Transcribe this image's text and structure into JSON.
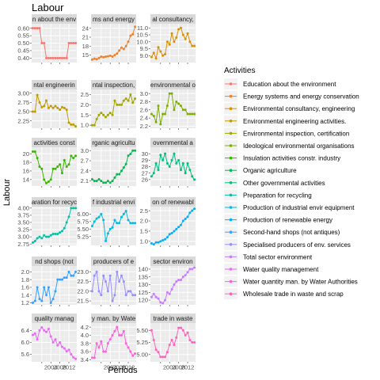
{
  "chart_data": {
    "type": "line",
    "title": "Labour",
    "xlabel": "Periods",
    "ylabel": "Labour",
    "x": [
      1996,
      1997,
      1998,
      1999,
      2000,
      2001,
      2002,
      2003,
      2004,
      2005,
      2006,
      2007,
      2008,
      2009,
      2010,
      2011,
      2012,
      2013,
      2014,
      2015
    ],
    "xlim": [
      1995.5,
      2015.5
    ],
    "x_ticks": [
      2000,
      2004,
      2008,
      2012
    ],
    "x_tick_labels": [
      "2000",
      "2004",
      "2008",
      "2012"
    ],
    "legend_title": "Activities",
    "legend_position": "right",
    "grid": true,
    "facets": [
      {
        "strip": "n about the env",
        "name": "Education about the environment",
        "color": "#F8766D",
        "ylim": [
          0.37,
          0.63
        ],
        "yticks": [
          0.4,
          0.45,
          0.5,
          0.55,
          0.6
        ],
        "ytick_labels": [
          "0.40",
          "0.45",
          "0.50",
          "0.55",
          "0.60"
        ],
        "values": [
          0.6,
          0.6,
          0.6,
          0.6,
          0.5,
          0.5,
          0.4,
          0.4,
          0.4,
          0.4,
          0.4,
          0.4,
          0.4,
          0.4,
          0.4,
          0.4,
          0.5,
          0.5,
          0.5,
          0.5
        ]
      },
      {
        "strip": "ms and energy",
        "name": "Energy systems and energy conservation",
        "color": "#EA8331",
        "ylim": [
          12.5,
          25.5
        ],
        "yticks": [
          15,
          18,
          21,
          24
        ],
        "ytick_labels": [
          "15",
          "18",
          "21",
          "24"
        ],
        "values": [
          13.5,
          13.8,
          13.6,
          14.0,
          14.5,
          14.3,
          14.5,
          14.6,
          14.8,
          14.5,
          15.0,
          15.5,
          16.5,
          17.5,
          17.0,
          18.0,
          19.5,
          21.5,
          22.0,
          24.5
        ]
      },
      {
        "strip": "al consultancy, ",
        "name": "Environmental consultancy, engineering",
        "color": "#D89000",
        "ylim": [
          8.5,
          11.3
        ],
        "yticks": [
          9.0,
          9.5,
          10.0,
          10.5,
          11.0
        ],
        "ytick_labels": [
          "9.0",
          "9.5",
          "10.0",
          "10.5",
          "11.0"
        ],
        "values": [
          8.9,
          9.2,
          8.8,
          9.6,
          9.3,
          9.0,
          9.1,
          10.0,
          9.8,
          10.6,
          10.0,
          10.3,
          10.9,
          11.0,
          10.5,
          10.2,
          10.6,
          10.0,
          9.7,
          9.7
        ]
      },
      {
        "strip": "ntal engineerin",
        "name": "Environmental engineering activities.",
        "color": "#C09B00",
        "ylim": [
          2.05,
          3.1
        ],
        "yticks": [
          2.25,
          2.5,
          2.75,
          3.0
        ],
        "ytick_labels": [
          "2.25",
          "2.50",
          "2.75",
          "3.00"
        ],
        "values": [
          2.5,
          2.5,
          2.95,
          2.75,
          2.62,
          2.65,
          2.8,
          2.6,
          2.65,
          2.6,
          2.65,
          2.6,
          2.55,
          2.62,
          2.6,
          2.55,
          2.2,
          2.15,
          2.15,
          2.1
        ]
      },
      {
        "strip": "ntal inspection, ",
        "name": "Environmental inspection, certification",
        "color": "#A3A500",
        "ylim": [
          0.85,
          2.75
        ],
        "yticks": [
          1.0,
          1.5,
          2.0,
          2.5
        ],
        "ytick_labels": [
          "1.0",
          "1.5",
          "2.0",
          "2.5"
        ],
        "values": [
          1.0,
          1.0,
          1.3,
          1.5,
          1.6,
          1.5,
          1.4,
          1.5,
          1.6,
          1.5,
          2.2,
          2.0,
          2.0,
          2.0,
          2.2,
          2.3,
          2.2,
          2.5,
          2.1,
          2.3
        ]
      },
      {
        "strip": "environmental o",
        "name": "Ideological environmental organisations",
        "color": "#7CAE00",
        "ylim": [
          2.15,
          3.1
        ],
        "yticks": [
          2.2,
          2.4,
          2.6,
          2.8,
          3.0
        ],
        "ytick_labels": [
          "2.2",
          "2.4",
          "2.6",
          "2.8",
          "3.0"
        ],
        "values": [
          2.5,
          2.45,
          2.3,
          2.7,
          2.25,
          2.5,
          2.5,
          2.7,
          3.0,
          3.0,
          2.6,
          2.8,
          2.75,
          2.7,
          2.6,
          2.6,
          2.5,
          2.5,
          2.5,
          2.5
        ]
      },
      {
        "strip": "activities const",
        "name": "Insulation activities constr. industry",
        "color": "#39B600",
        "ylim": [
          12.5,
          21.5
        ],
        "yticks": [
          14,
          16,
          18,
          20
        ],
        "ytick_labels": [
          "14",
          "16",
          "18",
          "20"
        ],
        "values": [
          20.5,
          20.5,
          19.0,
          17.0,
          16.5,
          14.0,
          13.2,
          13.5,
          14.0,
          16.5,
          16.5,
          17.0,
          17.5,
          15.5,
          18.5,
          17.0,
          17.5,
          19.5,
          19.0,
          19.5
        ]
      },
      {
        "strip": "rganic agricultu",
        "name": "Organic agriculture",
        "color": "#00BB4E",
        "ylim": [
          1.95,
          3.1
        ],
        "yticks": [
          2.1,
          2.4,
          2.7,
          3.0
        ],
        "ytick_labels": [
          "2.1",
          "2.4",
          "2.7",
          "3.0"
        ],
        "values": [
          2.15,
          2.1,
          2.1,
          2.15,
          2.1,
          2.05,
          2.05,
          2.1,
          2.05,
          2.1,
          2.2,
          2.3,
          2.3,
          2.4,
          2.5,
          2.6,
          2.85,
          2.9,
          3.0,
          3.0
        ]
      },
      {
        "strip": "overnmental a",
        "name": "Other governmental activities",
        "color": "#00BF7D",
        "ylim": [
          25.0,
          31.0
        ],
        "yticks": [
          26,
          27,
          28,
          29,
          30
        ],
        "ytick_labels": [
          "26",
          "27",
          "28",
          "29",
          "30"
        ],
        "values": [
          26.5,
          27.0,
          28.5,
          27.5,
          29.8,
          29.0,
          30.0,
          28.5,
          28.0,
          29.0,
          30.0,
          28.5,
          29.0,
          27.5,
          28.5,
          27.0,
          28.5,
          27.5,
          26.5,
          26.0
        ]
      },
      {
        "strip": "aration for recyc",
        "name": "Preparation for recycling",
        "color": "#00C1A3",
        "ylim": [
          2.7,
          4.05
        ],
        "yticks": [
          2.75,
          3.0,
          3.25,
          3.5,
          3.75,
          4.0
        ],
        "ytick_labels": [
          "2.75",
          "3.00",
          "3.25",
          "3.50",
          "3.75",
          "4.00"
        ],
        "values": [
          2.8,
          2.85,
          2.95,
          3.0,
          2.95,
          3.05,
          3.0,
          3.0,
          3.05,
          3.1,
          3.1,
          3.1,
          3.15,
          3.2,
          3.3,
          3.5,
          3.7,
          4.0,
          4.0,
          4.0
        ]
      },
      {
        "strip": "f industrial envi",
        "name": "Production of industrial envir equipment",
        "color": "#00BAE0",
        "ylim": [
          4.95,
          6.25
        ],
        "yticks": [
          5.25,
          5.5,
          5.75,
          6.0
        ],
        "ytick_labels": [
          "5.25",
          "5.50",
          "5.75",
          "6.00"
        ],
        "values": [
          5.6,
          5.75,
          5.85,
          5.9,
          6.0,
          5.8,
          5.1,
          5.35,
          5.5,
          5.55,
          5.8,
          5.7,
          5.7,
          5.9,
          6.0,
          6.1,
          5.8,
          5.7,
          5.7,
          5.7
        ]
      },
      {
        "strip": "on of renewabl",
        "name": "Production of renewable energy",
        "color": "#00B0F6",
        "ylim": [
          0.8,
          2.7
        ],
        "yticks": [
          1.0,
          1.5,
          2.0,
          2.5
        ],
        "ytick_labels": [
          "1.0",
          "1.5",
          "2.0",
          "2.5"
        ],
        "values": [
          0.9,
          0.85,
          0.95,
          0.95,
          1.0,
          1.05,
          1.1,
          1.2,
          1.35,
          1.4,
          1.5,
          1.6,
          1.7,
          1.8,
          2.0,
          2.1,
          2.2,
          2.4,
          2.5,
          2.6
        ]
      },
      {
        "strip": "nd shops (not",
        "name": "Second-hand shops (not antiques)",
        "color": "#35A2FF",
        "ylim": [
          1.15,
          2.15
        ],
        "yticks": [
          1.2,
          1.4,
          1.6,
          1.8,
          2.0
        ],
        "ytick_labels": [
          "1.2",
          "1.4",
          "1.6",
          "1.8",
          "2.0"
        ],
        "values": [
          1.2,
          1.25,
          1.6,
          1.3,
          1.25,
          1.6,
          1.4,
          1.6,
          1.2,
          1.3,
          1.5,
          1.8,
          1.8,
          1.8,
          1.85,
          1.85,
          2.0,
          1.9,
          1.9,
          2.0
        ]
      },
      {
        "strip": "producers of e",
        "name": "Specialised producers of env. services",
        "color": "#9590FF",
        "ylim": [
          21.3,
          23.3
        ],
        "yticks": [
          21.5,
          22.0,
          22.5,
          23.0
        ],
        "ytick_labels": [
          "21.5",
          "22.0",
          "22.5",
          "23.0"
        ],
        "values": [
          22.0,
          22.8,
          23.0,
          22.0,
          21.8,
          22.8,
          22.5,
          22.0,
          22.8,
          21.5,
          21.8,
          23.0,
          22.5,
          22.8,
          22.5,
          21.8,
          22.0,
          22.0,
          21.8,
          21.8
        ]
      },
      {
        "strip": "sector environ",
        "name": "Total sector environment",
        "color": "#C77CFF",
        "ylim": [
          117.0,
          142.0
        ],
        "yticks": [
          120,
          125,
          130,
          135,
          140
        ],
        "ytick_labels": [
          "120",
          "125",
          "130",
          "135",
          "140"
        ],
        "values": [
          122.0,
          124.0,
          122.0,
          121.0,
          118.5,
          118.0,
          120.0,
          125.0,
          124.0,
          127.0,
          130.0,
          132.0,
          133.0,
          133.0,
          135.0,
          136.0,
          138.0,
          140.0,
          140.0,
          141.0
        ]
      },
      {
        "strip": "quality manag",
        "name": "Water quality management",
        "color": "#E76BF3",
        "ylim": [
          5.35,
          6.65
        ],
        "yticks": [
          5.6,
          6.0,
          6.4
        ],
        "ytick_labels": [
          "5.6",
          "6.0",
          "6.4"
        ],
        "values": [
          6.25,
          6.3,
          6.1,
          6.4,
          6.5,
          6.4,
          6.35,
          6.45,
          6.2,
          6.0,
          6.1,
          5.9,
          6.0,
          5.85,
          5.8,
          5.7,
          5.75,
          5.6,
          5.5,
          5.45
        ]
      },
      {
        "strip": "y man. by Wate",
        "name": "Water quantity man. by Water Authorities",
        "color": "#FA62DB",
        "ylim": [
          3.35,
          4.3
        ],
        "yticks": [
          3.4,
          3.6,
          3.8,
          4.0,
          4.2
        ],
        "ytick_labels": [
          "3.4",
          "3.6",
          "3.8",
          "4.0",
          "4.2"
        ],
        "values": [
          3.45,
          3.45,
          3.8,
          3.7,
          3.85,
          3.6,
          3.6,
          3.8,
          3.9,
          4.0,
          4.1,
          4.2,
          4.0,
          4.0,
          4.1,
          3.8,
          3.7,
          3.6,
          3.5,
          3.55
        ]
      },
      {
        "strip": "trade in waste",
        "name": "Wholesale trade in waste and scrap",
        "color": "#FF62BC",
        "ylim": [
          4.85,
          5.65
        ],
        "yticks": [
          5.0,
          5.25,
          5.5
        ],
        "ytick_labels": [
          "5.00",
          "5.25",
          "5.50"
        ],
        "values": [
          5.5,
          5.3,
          5.1,
          5.05,
          4.95,
          4.95,
          4.95,
          5.05,
          5.2,
          5.3,
          5.2,
          5.35,
          5.55,
          5.55,
          5.5,
          5.4,
          5.45,
          5.3,
          5.25,
          5.25
        ]
      }
    ]
  }
}
